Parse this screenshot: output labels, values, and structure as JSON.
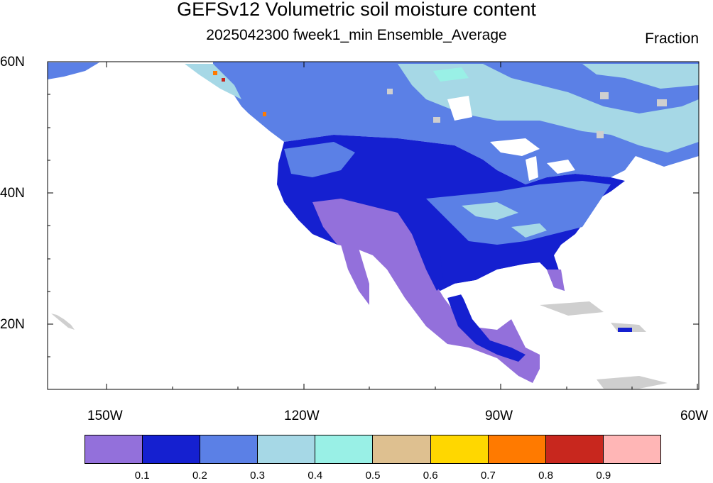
{
  "title": "GEFSv12 Volumetric soil moisture content",
  "subtitle": "2025042300 fweek1_min Ensemble_Average",
  "units": "Fraction",
  "lat_labels": [
    "60N",
    "40N",
    "20N"
  ],
  "lon_labels": [
    "150W",
    "120W",
    "90W",
    "60W"
  ],
  "colorbar": {
    "colors": [
      "#9370DB",
      "#1520D0",
      "#5B80E6",
      "#A6D8E6",
      "#99F0E6",
      "#DEC090",
      "#FFD700",
      "#FF7A00",
      "#C8271E",
      "#FFB6B6"
    ],
    "labels": [
      "0.1",
      "0.2",
      "0.3",
      "0.4",
      "0.5",
      "0.6",
      "0.7",
      "0.8",
      "0.9"
    ]
  }
}
